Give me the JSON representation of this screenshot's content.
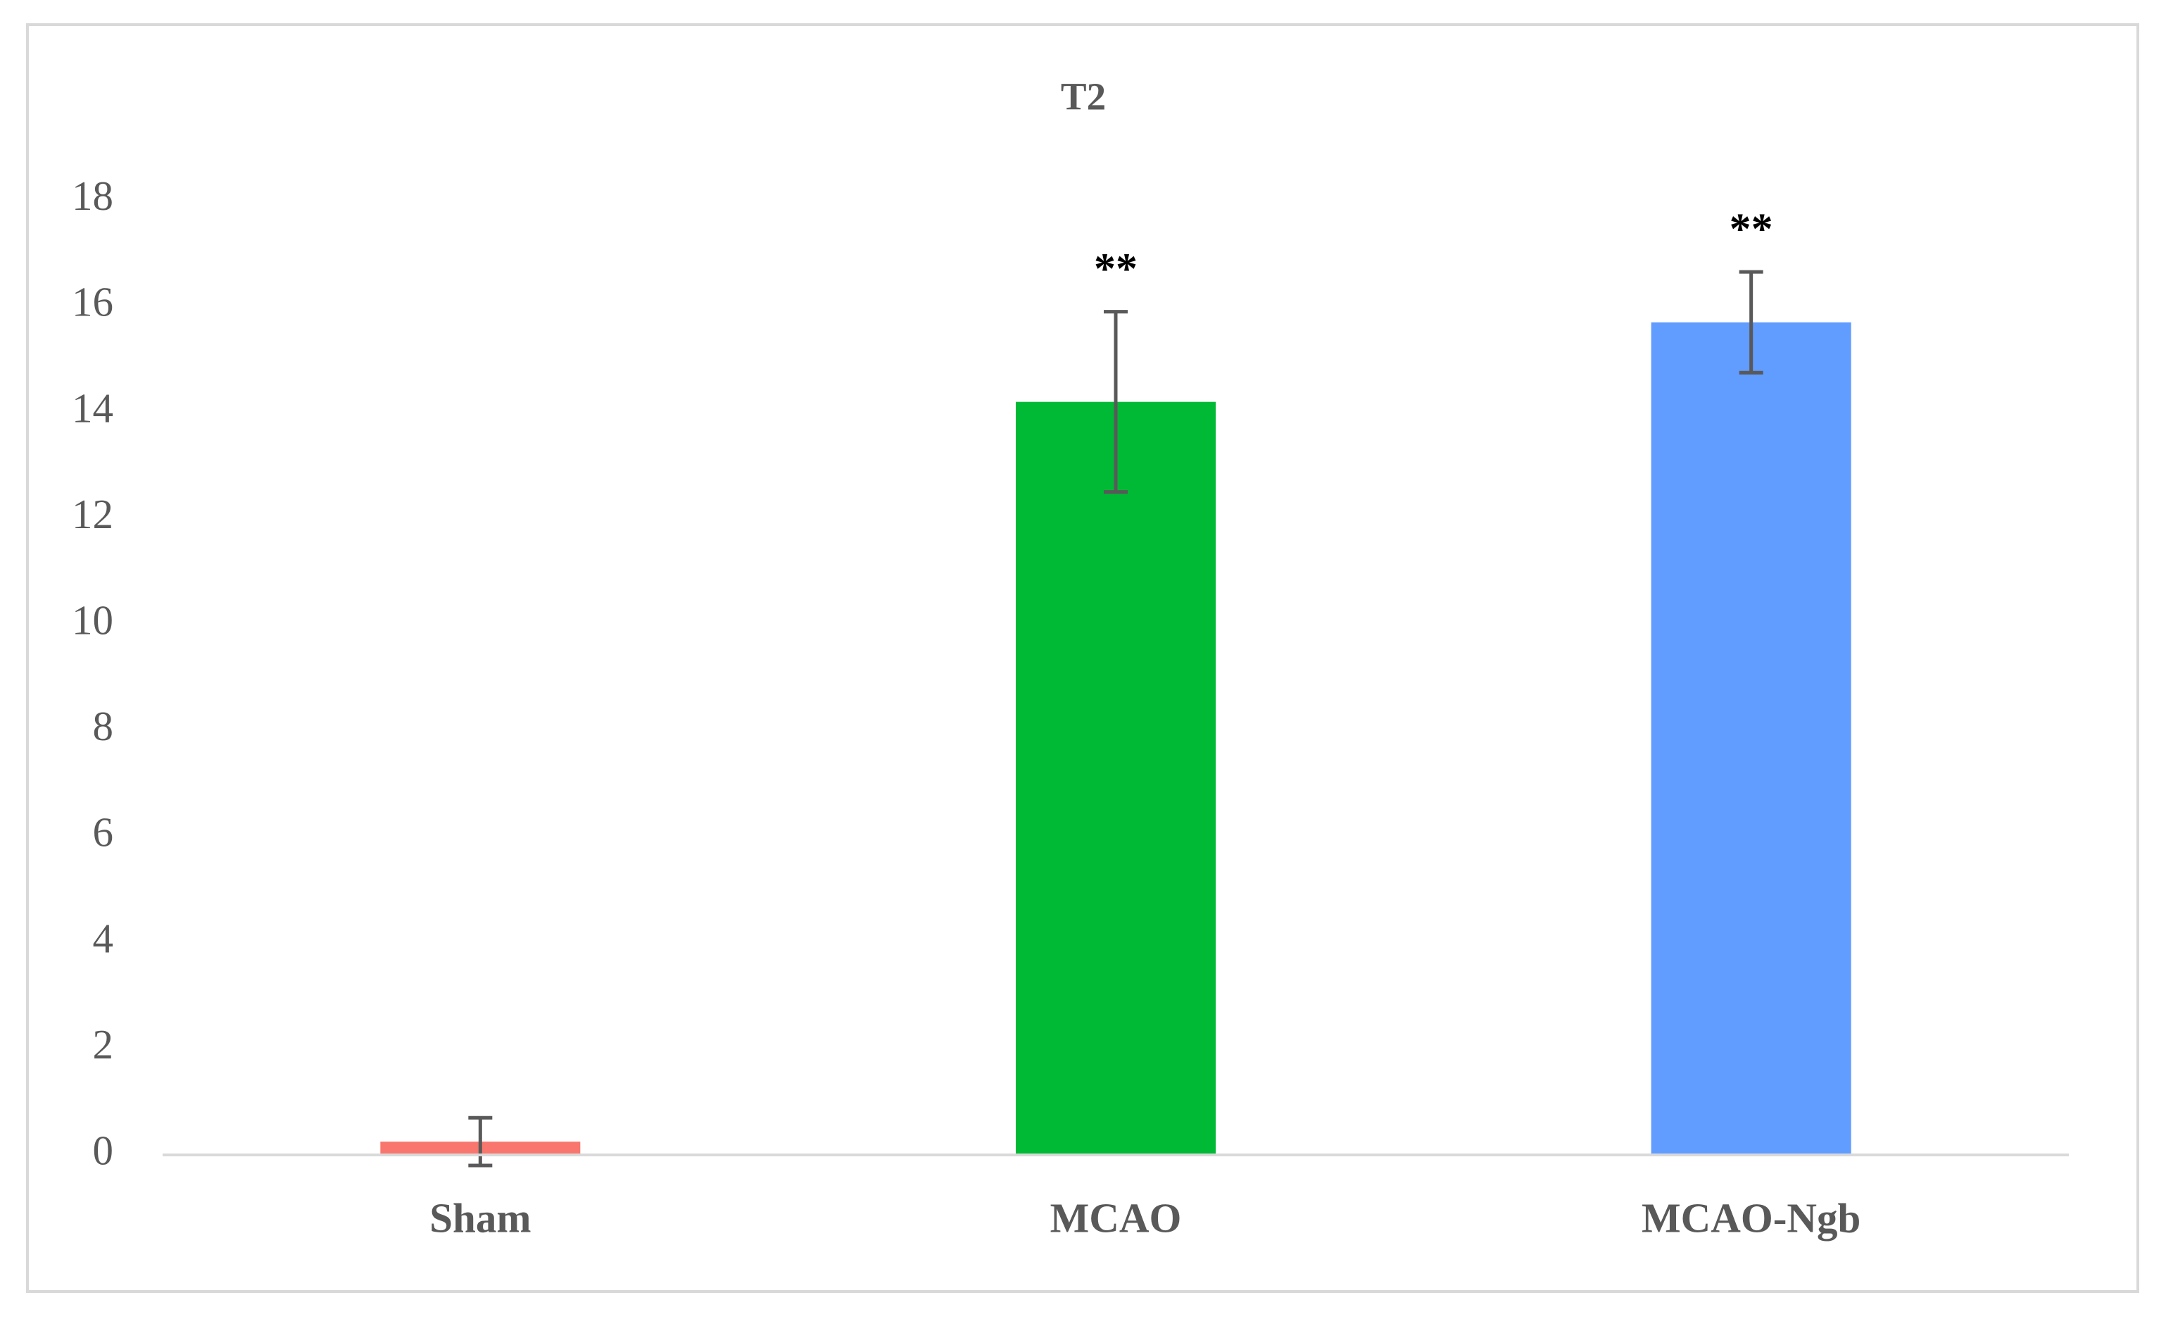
{
  "chart_data": {
    "type": "bar",
    "title": "T2",
    "categories": [
      "Sham",
      "MCAO",
      "MCAO-Ngb"
    ],
    "values": [
      0.25,
      14.2,
      15.7
    ],
    "errors": [
      0.45,
      1.7,
      0.95
    ],
    "colors": [
      "#f8766d",
      "#00b934",
      "#619cff"
    ],
    "annotations": [
      null,
      "**",
      "**"
    ],
    "ylim": [
      0,
      18
    ],
    "yticks": [
      0,
      2,
      4,
      6,
      8,
      10,
      12,
      14,
      16,
      18
    ],
    "grid": false
  }
}
